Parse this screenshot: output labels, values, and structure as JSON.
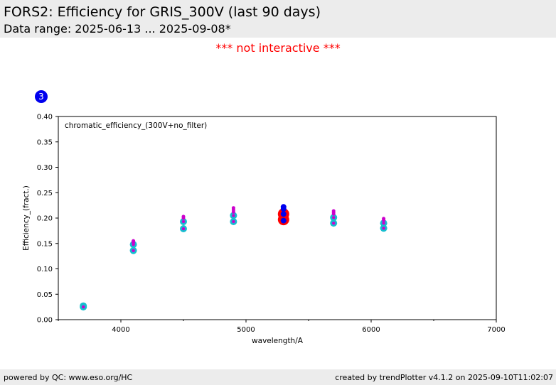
{
  "header": {
    "title": "FORS2: Efficiency for GRIS_300V (last 90 days)",
    "subtitle": "Data range: 2025-06-13 ... 2025-09-08*"
  },
  "notice": "*** not interactive ***",
  "badge": "3",
  "footer": {
    "left": "powered by QC: www.eso.org/HC",
    "right": "created by trendPlotter v4.1.2 on 2025-09-10T11:02:07"
  },
  "colors": {
    "notice": "#ff0000",
    "badge": "#0000ee",
    "cyan": "#17becf",
    "magenta": "#cc00cc",
    "blue": "#0000ee",
    "red": "#ff0000"
  },
  "chart_data": {
    "type": "scatter",
    "title": "chromatic_efficiency_(300V+no_filter)",
    "xlabel": "wavelength/A",
    "ylabel": "Efficiency_(fract.)",
    "xlim": [
      3500,
      7000
    ],
    "ylim": [
      0.0,
      0.4
    ],
    "xticks": [
      4000,
      5000,
      6000,
      7000
    ],
    "yticks": [
      0.0,
      0.05,
      0.1,
      0.15,
      0.2,
      0.25,
      0.3,
      0.35,
      0.4
    ],
    "grid": false,
    "series": [
      {
        "marker": "cyan circle, magenta center",
        "points": [
          {
            "x": 3700,
            "y": 0.027
          },
          {
            "x": 3700,
            "y": 0.025
          },
          {
            "x": 4100,
            "y": 0.148
          },
          {
            "x": 4100,
            "y": 0.136
          },
          {
            "x": 4500,
            "y": 0.193
          },
          {
            "x": 4500,
            "y": 0.179
          },
          {
            "x": 4900,
            "y": 0.205
          },
          {
            "x": 4900,
            "y": 0.193
          },
          {
            "x": 5700,
            "y": 0.201
          },
          {
            "x": 5700,
            "y": 0.19
          },
          {
            "x": 6100,
            "y": 0.19
          },
          {
            "x": 6100,
            "y": 0.18
          }
        ]
      },
      {
        "marker": "small magenta dot",
        "points": [
          {
            "x": 4100,
            "y": 0.155
          },
          {
            "x": 4100,
            "y": 0.152
          },
          {
            "x": 4500,
            "y": 0.203
          },
          {
            "x": 4500,
            "y": 0.2
          },
          {
            "x": 4900,
            "y": 0.22
          },
          {
            "x": 4900,
            "y": 0.216
          },
          {
            "x": 4900,
            "y": 0.212
          },
          {
            "x": 5700,
            "y": 0.214
          },
          {
            "x": 5700,
            "y": 0.211
          },
          {
            "x": 5700,
            "y": 0.208
          },
          {
            "x": 6100,
            "y": 0.199
          },
          {
            "x": 6100,
            "y": 0.196
          }
        ]
      },
      {
        "marker": "blue dot",
        "points": [
          {
            "x": 5300,
            "y": 0.222
          },
          {
            "x": 5300,
            "y": 0.218
          },
          {
            "x": 5300,
            "y": 0.208
          },
          {
            "x": 5300,
            "y": 0.195
          }
        ]
      },
      {
        "marker": "large red circle",
        "points": [
          {
            "x": 5300,
            "y": 0.208
          },
          {
            "x": 5300,
            "y": 0.197
          }
        ]
      }
    ]
  }
}
